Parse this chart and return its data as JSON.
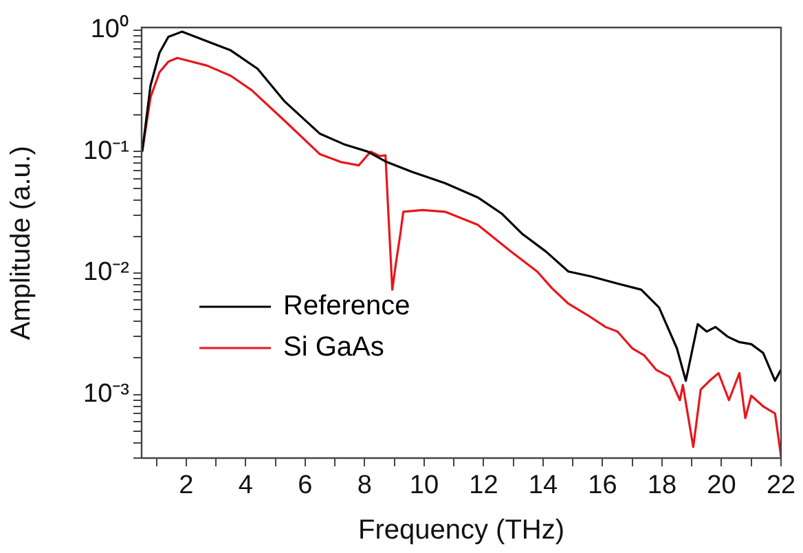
{
  "chart_data": {
    "type": "line",
    "xlabel": "Frequency (THz)",
    "ylabel": "Amplitude (a.u.)",
    "log": "y",
    "grid": false,
    "legend": "bottom left",
    "marker": "none",
    "line_style": "solid",
    "xlim": [
      0.5,
      22
    ],
    "xticks": [
      {
        "value": 1,
        "label": null
      },
      2,
      {
        "value": 3,
        "label": null
      },
      4,
      {
        "value": 5,
        "label": null
      },
      6,
      {
        "value": 7,
        "label": null
      },
      8,
      {
        "value": 9,
        "label": null
      },
      10,
      {
        "value": 11,
        "label": null
      },
      12,
      {
        "value": 13,
        "label": null
      },
      14,
      {
        "value": 15,
        "label": null
      },
      16,
      {
        "value": 17,
        "label": null
      },
      18,
      {
        "value": 19,
        "label": null
      },
      20,
      {
        "value": 21,
        "label": null
      },
      22
    ],
    "ylim": [
      0.0003,
      1.05
    ],
    "yticks": [
      {
        "value": 0.0003,
        "label": null
      },
      {
        "value": 0.0004,
        "label": null
      },
      {
        "value": 0.0005,
        "label": null
      },
      {
        "value": 0.0006,
        "label": null
      },
      {
        "value": 0.0007,
        "label": null
      },
      {
        "value": 0.0008,
        "label": null
      },
      {
        "value": 0.0009,
        "label": null
      },
      {
        "value": 0.001,
        "label": "10⁻³"
      },
      {
        "value": 0.002,
        "label": null
      },
      {
        "value": 0.003,
        "label": null
      },
      {
        "value": 0.004,
        "label": null
      },
      {
        "value": 0.005,
        "label": null
      },
      {
        "value": 0.006,
        "label": null
      },
      {
        "value": 0.007,
        "label": null
      },
      {
        "value": 0.008,
        "label": null
      },
      {
        "value": 0.009,
        "label": null
      },
      {
        "value": 0.01,
        "label": "10⁻²"
      },
      {
        "value": 0.02,
        "label": null
      },
      {
        "value": 0.03,
        "label": null
      },
      {
        "value": 0.04,
        "label": null
      },
      {
        "value": 0.05,
        "label": null
      },
      {
        "value": 0.06,
        "label": null
      },
      {
        "value": 0.07,
        "label": null
      },
      {
        "value": 0.08,
        "label": null
      },
      {
        "value": 0.09,
        "label": null
      },
      {
        "value": 0.1,
        "label": "10⁻¹"
      },
      {
        "value": 0.2,
        "label": null
      },
      {
        "value": 0.3,
        "label": null
      },
      {
        "value": 0.4,
        "label": null
      },
      {
        "value": 0.5,
        "label": null
      },
      {
        "value": 0.6,
        "label": null
      },
      {
        "value": 0.7,
        "label": null
      },
      {
        "value": 0.8,
        "label": null
      },
      {
        "value": 0.9,
        "label": null
      },
      {
        "value": 1,
        "label": "10⁰"
      }
    ],
    "series": [
      {
        "name": "Reference",
        "color": "#000000",
        "x": [
          0.52,
          0.8,
          1.1,
          1.4,
          1.86,
          2.7,
          3.5,
          4.4,
          5.3,
          6.5,
          7.3,
          8.1,
          8.7,
          9.6,
          10.7,
          11.8,
          12.6,
          13.3,
          14.1,
          14.85,
          15.6,
          16.5,
          17.3,
          17.9,
          18.5,
          18.8,
          19.2,
          19.5,
          19.8,
          20.2,
          20.6,
          21.0,
          21.4,
          21.8,
          22
        ],
        "values": [
          0.1,
          0.35,
          0.65,
          0.88,
          0.97,
          0.81,
          0.68,
          0.48,
          0.26,
          0.14,
          0.115,
          0.1,
          0.083,
          0.068,
          0.055,
          0.042,
          0.031,
          0.021,
          0.015,
          0.0103,
          0.0094,
          0.0082,
          0.0073,
          0.0052,
          0.0024,
          0.0013,
          0.0038,
          0.0033,
          0.0036,
          0.003,
          0.0027,
          0.0026,
          0.0022,
          0.0013,
          0.0016
        ]
      },
      {
        "name": "Si GaAs",
        "color": "#e8161b",
        "x": [
          0.52,
          0.8,
          1.1,
          1.4,
          1.7,
          2.7,
          3.5,
          4.2,
          5.3,
          6.5,
          7.2,
          7.8,
          8.2,
          8.5,
          8.7,
          8.8,
          8.93,
          9.05,
          9.2,
          9.3,
          9.95,
          10.7,
          11.8,
          12.9,
          13.8,
          14.3,
          14.85,
          15.5,
          16.1,
          16.5,
          17.0,
          17.4,
          17.8,
          18.25,
          18.6,
          18.7,
          19.05,
          19.3,
          19.6,
          19.9,
          20.25,
          20.6,
          20.8,
          21.0,
          21.4,
          21.8,
          22
        ],
        "values": [
          0.1,
          0.28,
          0.45,
          0.55,
          0.59,
          0.51,
          0.42,
          0.32,
          0.18,
          0.095,
          0.082,
          0.077,
          0.1,
          0.092,
          0.093,
          0.03,
          0.0073,
          0.012,
          0.021,
          0.032,
          0.033,
          0.032,
          0.025,
          0.0152,
          0.0103,
          0.0075,
          0.0056,
          0.0045,
          0.0036,
          0.0033,
          0.0024,
          0.0021,
          0.0016,
          0.0014,
          0.0009,
          0.0012,
          0.00037,
          0.0011,
          0.0013,
          0.0015,
          0.0009,
          0.0015,
          0.00064,
          0.00098,
          0.0008,
          0.0007,
          0.00031
        ]
      }
    ]
  }
}
